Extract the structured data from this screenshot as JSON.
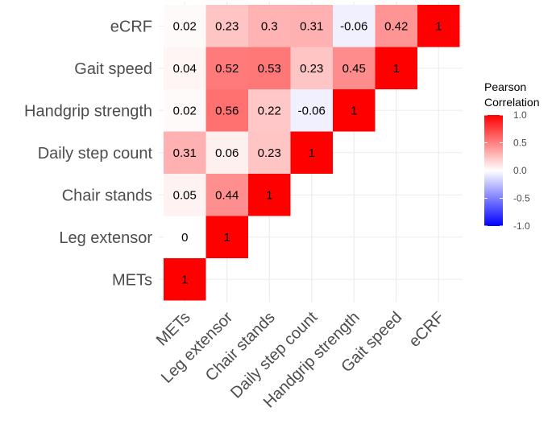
{
  "chart_data": {
    "type": "heatmap",
    "subtype": "lower-triangular correlation matrix",
    "variables": [
      "METs",
      "Leg extensor",
      "Chair stands",
      "Daily step count",
      "Handgrip strength",
      "Gait speed",
      "eCRF"
    ],
    "matrix": [
      [
        1
      ],
      [
        0,
        1
      ],
      [
        0.05,
        0.44,
        1
      ],
      [
        0.31,
        0.06,
        0.23,
        1
      ],
      [
        0.02,
        0.56,
        0.22,
        -0.06,
        1
      ],
      [
        0.04,
        0.52,
        0.53,
        0.23,
        0.45,
        1
      ],
      [
        0.02,
        0.23,
        0.3,
        0.31,
        -0.06,
        0.42,
        1
      ]
    ],
    "legend": {
      "title_line1": "Pearson",
      "title_line2": "Correlation",
      "range": [
        -1,
        1
      ],
      "ticks": [
        "1.0",
        "0.5",
        "0.0",
        "-0.5",
        "-1.0"
      ],
      "tick_values": [
        1,
        0.5,
        0,
        -0.5,
        -1
      ],
      "colors": {
        "low": "#0000ff",
        "mid": "#ffffff",
        "high": "#ff0000"
      },
      "placement": "right"
    },
    "grid": true
  }
}
